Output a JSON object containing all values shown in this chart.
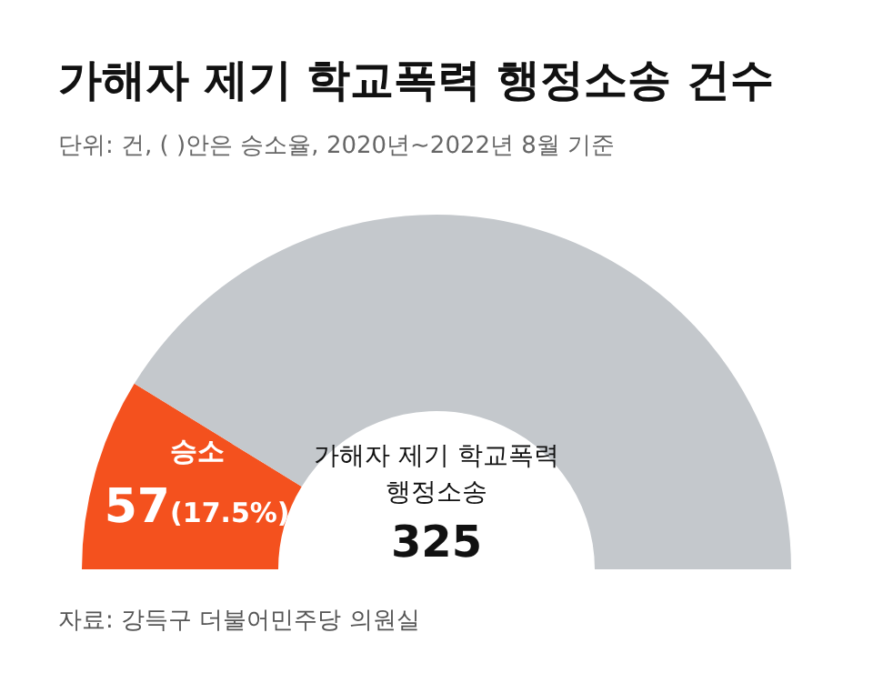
{
  "chart_data": {
    "type": "donut",
    "title": "가해자 제기 학교폭력 행정소송 건수",
    "subtitle": "단위: 건, ( )안은 승소율, 2020년~2022년 8월 기준",
    "categories": [
      "승소",
      null
    ],
    "values": [
      57,
      268
    ],
    "colors": [
      "#f4511e",
      "#c4c8cc"
    ],
    "value_labels": [
      "57(17.5%)",
      null
    ],
    "annotations": [
      "가해자 제기 학교폭력 행정소송",
      "325",
      "자료: 강득구 더불어민주당 의원실"
    ]
  }
}
